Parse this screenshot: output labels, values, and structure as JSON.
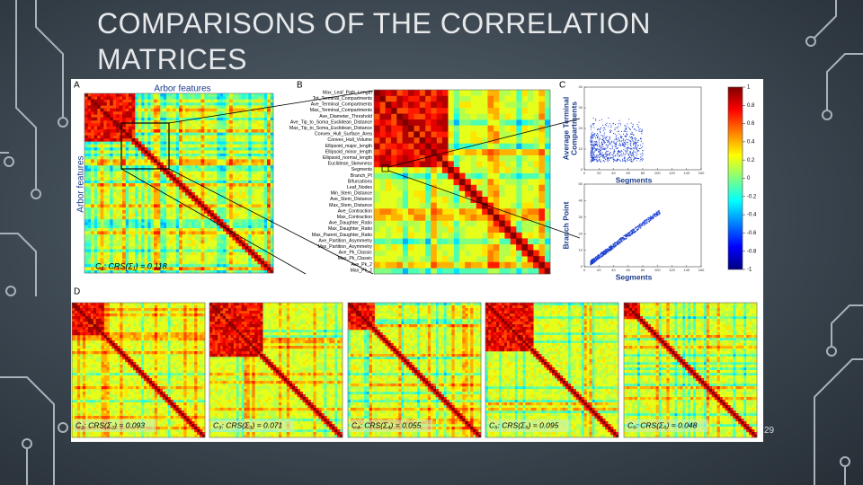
{
  "slide": {
    "title": "COMPARISONS OF THE CORRELATION MATRICES",
    "page_number": "29"
  },
  "figure": {
    "panel_labels": [
      "A",
      "B",
      "C",
      "D"
    ],
    "panel_a": {
      "x_label": "Arbor features",
      "y_label": "Arbor features",
      "caption": "C₁: CRS(Σ₁) = 0.118"
    },
    "panel_b": {
      "features": [
        "Max_Leaf_Path_Length",
        "Tot_Terminal_Compartments",
        "Ave_Terminal_Compartments",
        "Max_Terminal_Compartments",
        "Ave_Diameter_Threshold",
        "Ave_Tip_to_Soma_Euclidean_Distance",
        "Max_Tip_to_Soma_Euclidean_Distance",
        "Convex_Hull_Surface_Area",
        "Convex_Hull_Volume",
        "Ellipsoid_major_length",
        "Ellipsoid_minor_length",
        "Ellipsoid_normal_length",
        "Euclidean_Skewness",
        "Segments",
        "Branch_Pt",
        "Bifurcations",
        "Leaf_Nodes",
        "Min_Stem_Distance",
        "Ave_Stem_Distance",
        "Max_Stem_Distance",
        "Ave_Contraction",
        "Max_Contraction",
        "Ave_Daughter_Ratio",
        "Max_Daughter_Ratio",
        "Max_Parent_Daughter_Ratio",
        "Ave_Partition_Asymmetry",
        "Max_Partition_Asymmetry",
        "Ave_Pk_Classic",
        "Max_Pk_Classic",
        "Ave_Pk_2",
        "Max_Pk_2"
      ]
    },
    "panel_c": {
      "top": {
        "y_label": [
          "Average Terminal",
          "Compartments"
        ],
        "x_label": "Segments",
        "xticks": [
          0,
          20,
          40,
          60,
          80,
          100,
          120,
          140,
          160
        ],
        "yticks": [
          0,
          10,
          20,
          30,
          40
        ]
      },
      "bottom": {
        "y_label": [
          "Branch Point"
        ],
        "x_label": "Segments",
        "xticks": [
          0,
          20,
          40,
          60,
          80,
          100,
          120,
          140,
          160
        ],
        "yticks": [
          0,
          10,
          20,
          30,
          40,
          50
        ]
      },
      "colorbar_ticks": [
        1,
        0.8,
        0.6,
        0.4,
        0.2,
        0,
        -0.2,
        -0.4,
        -0.6,
        -0.8,
        -1
      ]
    },
    "panel_d": {
      "captions": [
        "C₂: CRS(Σ₂) = 0.093",
        "C₃: CRS(Σ₃) = 0.071",
        "C₄: CRS(Σ₄) = 0.055",
        "C₅: CRS(Σ₅) = 0.095",
        "C₆: CRS(Σ₆) = 0.048"
      ]
    }
  }
}
